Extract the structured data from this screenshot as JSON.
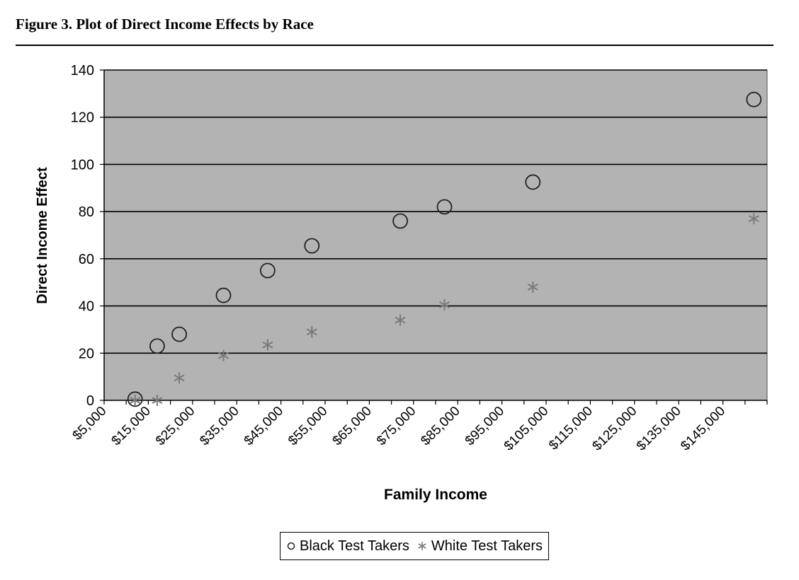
{
  "figure": {
    "caption": "Figure 3. Plot of Direct Income Effects by Race"
  },
  "chart_data": {
    "type": "scatter",
    "title": "",
    "xlabel": "Family Income",
    "ylabel": "Direct Income Effect",
    "xlim": [
      5000,
      155000
    ],
    "ylim": [
      0,
      140
    ],
    "x_ticks": [
      5000,
      15000,
      25000,
      35000,
      45000,
      55000,
      65000,
      75000,
      85000,
      95000,
      105000,
      115000,
      125000,
      135000,
      145000
    ],
    "x_tick_labels": [
      "$5,000",
      "$15,000",
      "$25,000",
      "$35,000",
      "$45,000",
      "$55,000",
      "$65,000",
      "$75,000",
      "$85,000",
      "$95,000",
      "$105,000",
      "$115,000",
      "$125,000",
      "$135,000",
      "$145,000"
    ],
    "y_ticks": [
      0,
      20,
      40,
      60,
      80,
      100,
      120,
      140
    ],
    "y_tick_labels": [
      "0",
      "20",
      "40",
      "60",
      "80",
      "100",
      "120",
      "140"
    ],
    "grid": true,
    "legend_position": "bottom",
    "series": [
      {
        "name": "Black Test Takers",
        "marker": "circle",
        "color": "#222222",
        "x": [
          12000,
          17000,
          22000,
          32000,
          42000,
          52000,
          72000,
          82000,
          102000,
          152000
        ],
        "y": [
          0.5,
          23,
          28,
          44.5,
          55,
          65.5,
          76,
          82,
          92.5,
          127.5
        ]
      },
      {
        "name": "White Test Takers",
        "marker": "star",
        "color": "#7a7a7a",
        "x": [
          12000,
          17000,
          22000,
          32000,
          42000,
          52000,
          72000,
          82000,
          102000,
          152000
        ],
        "y": [
          0,
          0,
          9.5,
          19,
          23.5,
          29,
          34,
          40.5,
          48,
          77
        ]
      }
    ],
    "colors": {
      "plot_background": "#b3b3b3",
      "gridline": "#000000"
    }
  }
}
